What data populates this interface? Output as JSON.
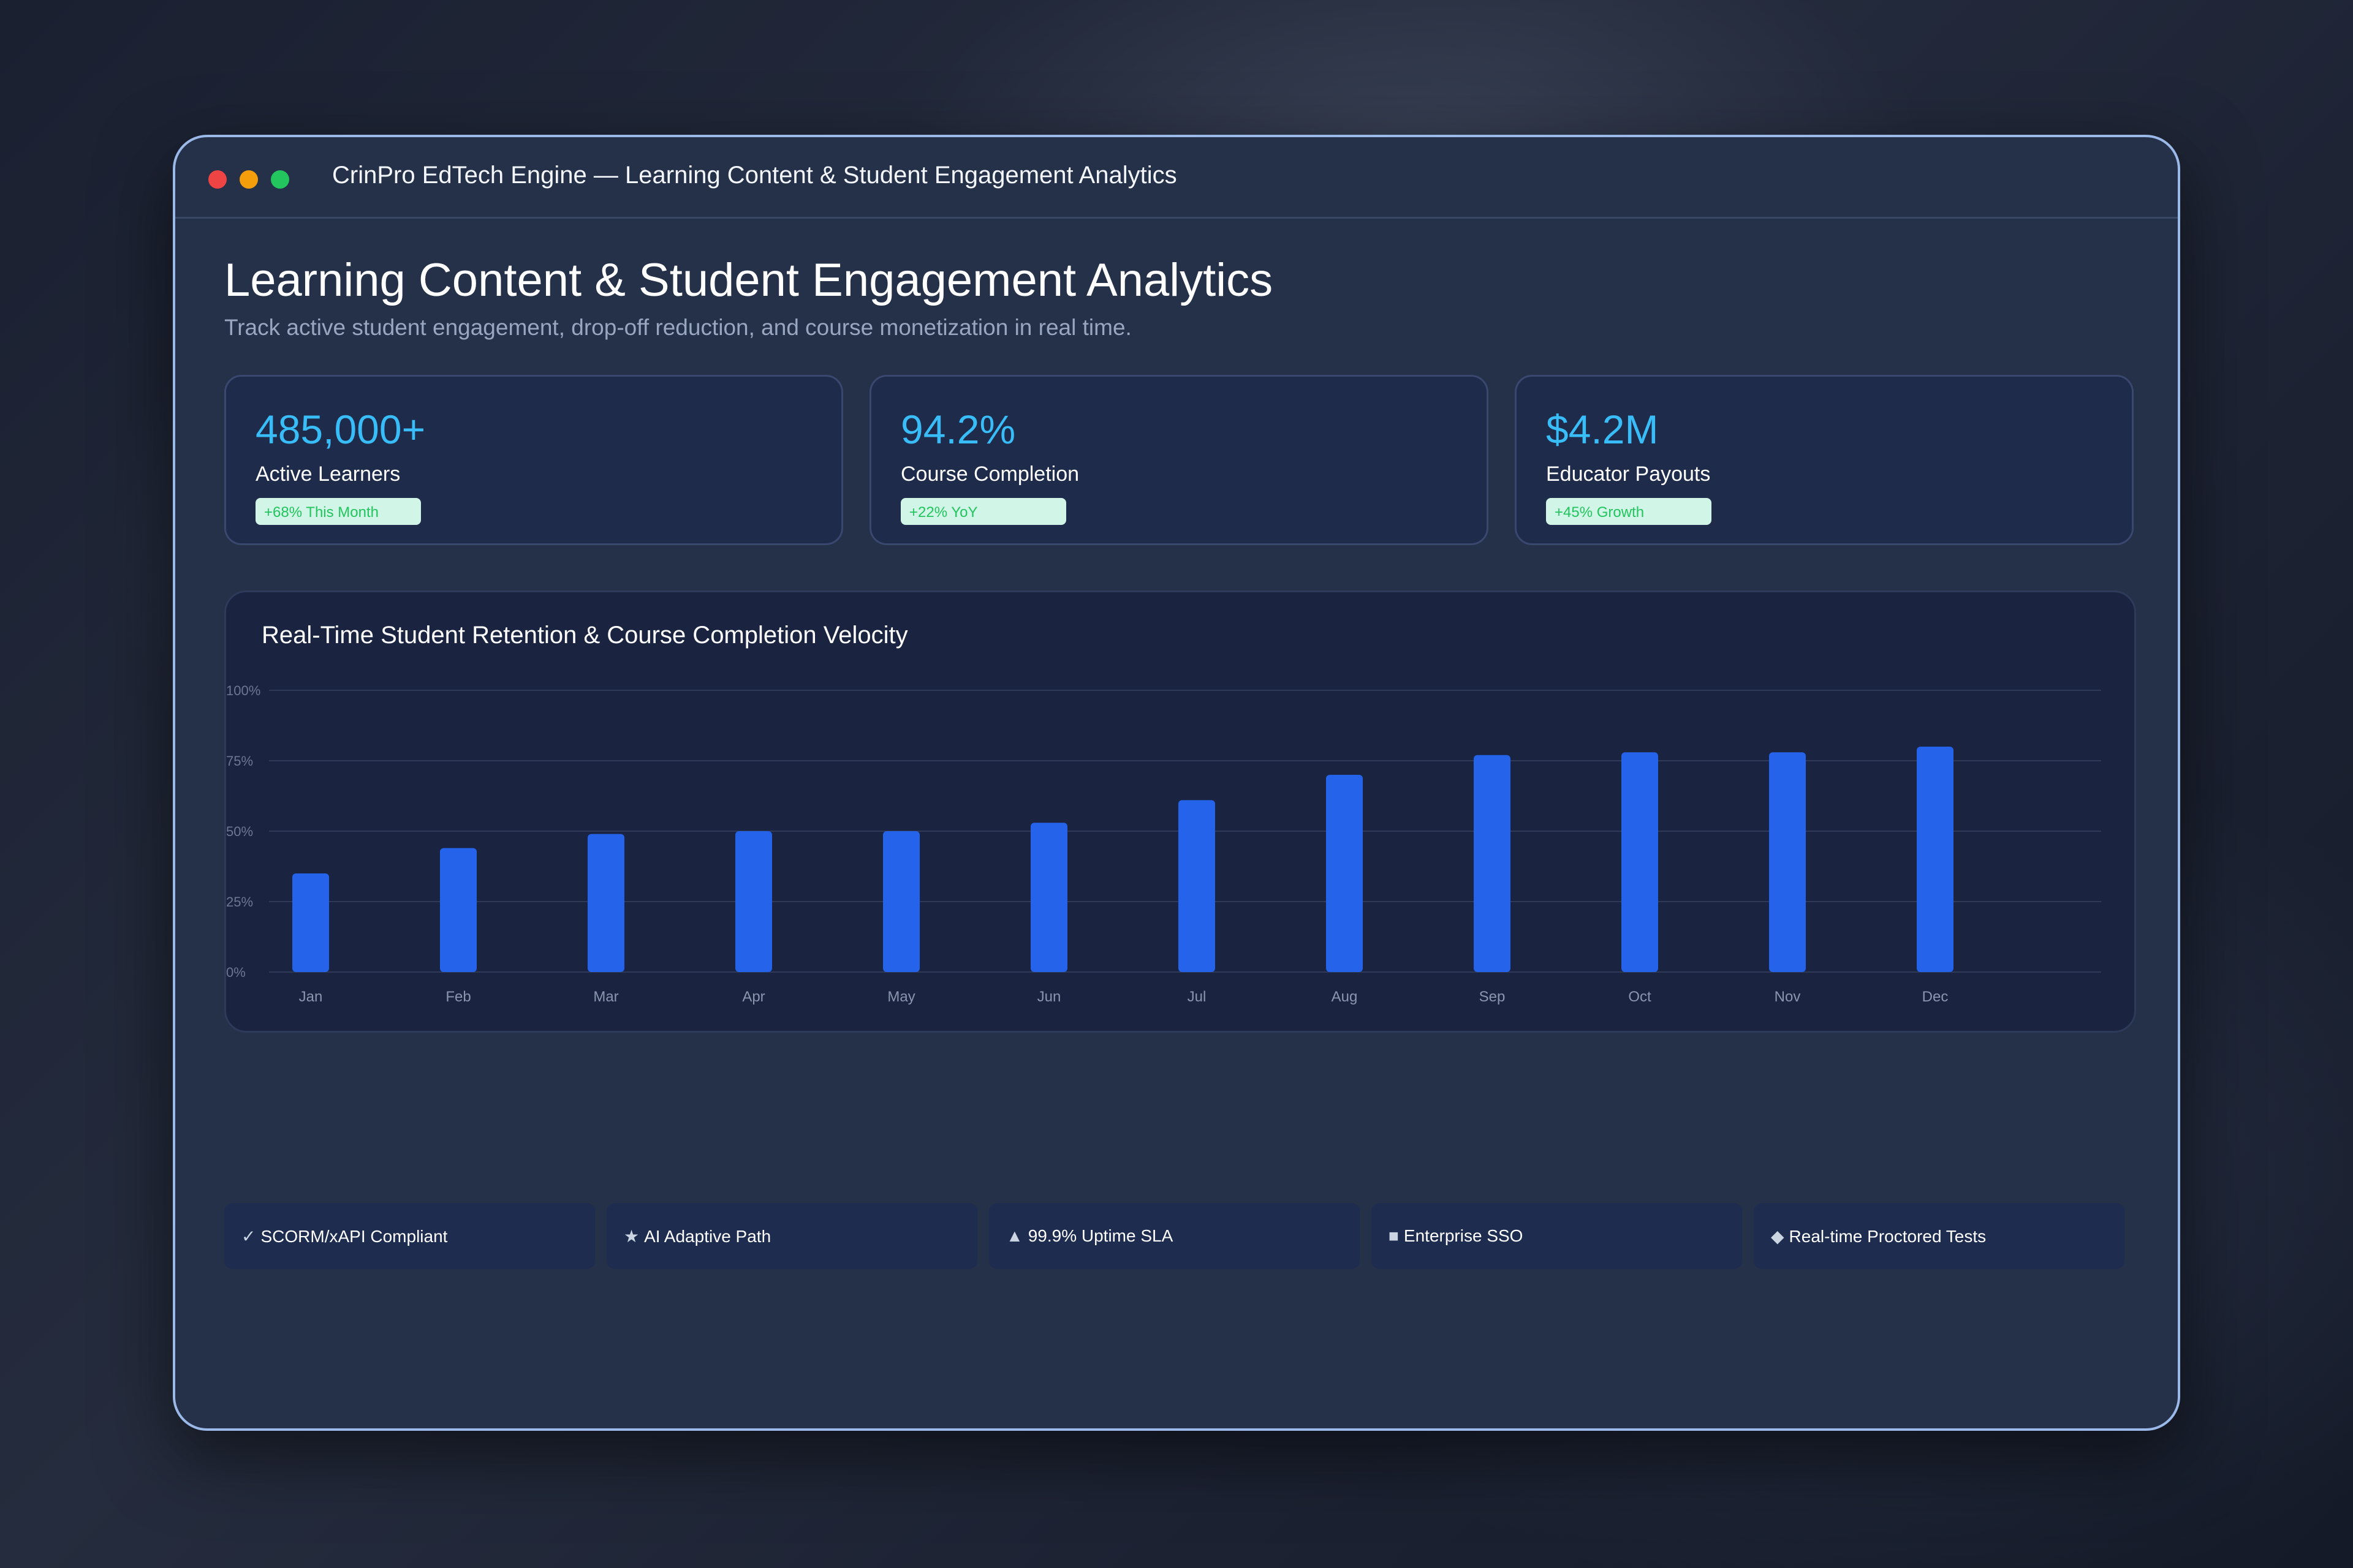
{
  "window": {
    "title": "CrinPro EdTech Engine — Learning Content & Student Engagement Analytics"
  },
  "header": {
    "title": "Learning Content & Student Engagement Analytics",
    "subtitle": "Track active student engagement, drop-off reduction, and course monetization in real time."
  },
  "kpis": [
    {
      "value": "485,000+",
      "label": "Active Learners",
      "badge": "+68% This Month"
    },
    {
      "value": "94.2%",
      "label": "Course Completion",
      "badge": "+22% YoY"
    },
    {
      "value": "$4.2M",
      "label": "Educator Payouts",
      "badge": "+45% Growth"
    }
  ],
  "colors": {
    "accent_value": "#38bdf8",
    "badge_text": "#22c55e",
    "badge_bg": "#d1f5e6",
    "bar": "#2563eb",
    "window_border": "#9ab8e8"
  },
  "chart_data": {
    "type": "bar",
    "title": "Real-Time Student Retention & Course Completion Velocity",
    "categories": [
      "Jan",
      "Feb",
      "Mar",
      "Apr",
      "May",
      "Jun",
      "Jul",
      "Aug",
      "Sep",
      "Oct",
      "Nov",
      "Dec"
    ],
    "values": [
      35,
      44,
      49,
      50,
      50,
      53,
      61,
      70,
      77,
      78,
      78,
      80
    ],
    "ylim": [
      0,
      100
    ],
    "y_ticks": [
      "0%",
      "25%",
      "50%",
      "75%",
      "100%"
    ],
    "grid": true,
    "xlabel": "",
    "ylabel": ""
  },
  "features": [
    {
      "icon": "check-icon",
      "label": "SCORM/xAPI Compliant"
    },
    {
      "icon": "ai-icon",
      "label": "AI Adaptive Path"
    },
    {
      "icon": "uptime-icon",
      "label": "99.9% Uptime SLA"
    },
    {
      "icon": "lock-icon",
      "label": "Enterprise SSO"
    },
    {
      "icon": "shield-icon",
      "label": "Real-time Proctored Tests"
    }
  ]
}
